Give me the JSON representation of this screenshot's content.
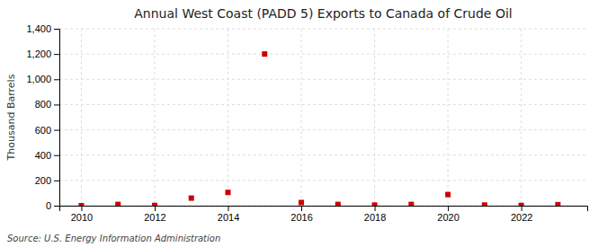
{
  "chart_data": {
    "type": "scatter",
    "title": "Annual West Coast (PADD 5) Exports to Canada of Crude Oil",
    "ylabel": "Thousand Barrels",
    "source": "Source: U.S. Energy Information Administration",
    "x": [
      2010,
      2011,
      2012,
      2013,
      2014,
      2015,
      2016,
      2017,
      2018,
      2019,
      2020,
      2021,
      2022,
      2023
    ],
    "values": [
      0,
      10,
      2,
      60,
      105,
      1200,
      25,
      10,
      5,
      10,
      88,
      5,
      2,
      8
    ],
    "color": "#cc0000",
    "marker": "square",
    "xlim": [
      2009.4,
      2023.8
    ],
    "xticks": [
      2010,
      2012,
      2014,
      2016,
      2018,
      2020,
      2022
    ],
    "ylim": [
      0,
      1400
    ],
    "yticks": [
      0,
      200,
      400,
      600,
      800,
      {
        "value": 1000,
        "label": "1,000"
      },
      {
        "value": 1200,
        "label": "1,200"
      },
      {
        "value": 1400,
        "label": "1,400"
      }
    ],
    "grid": true
  }
}
